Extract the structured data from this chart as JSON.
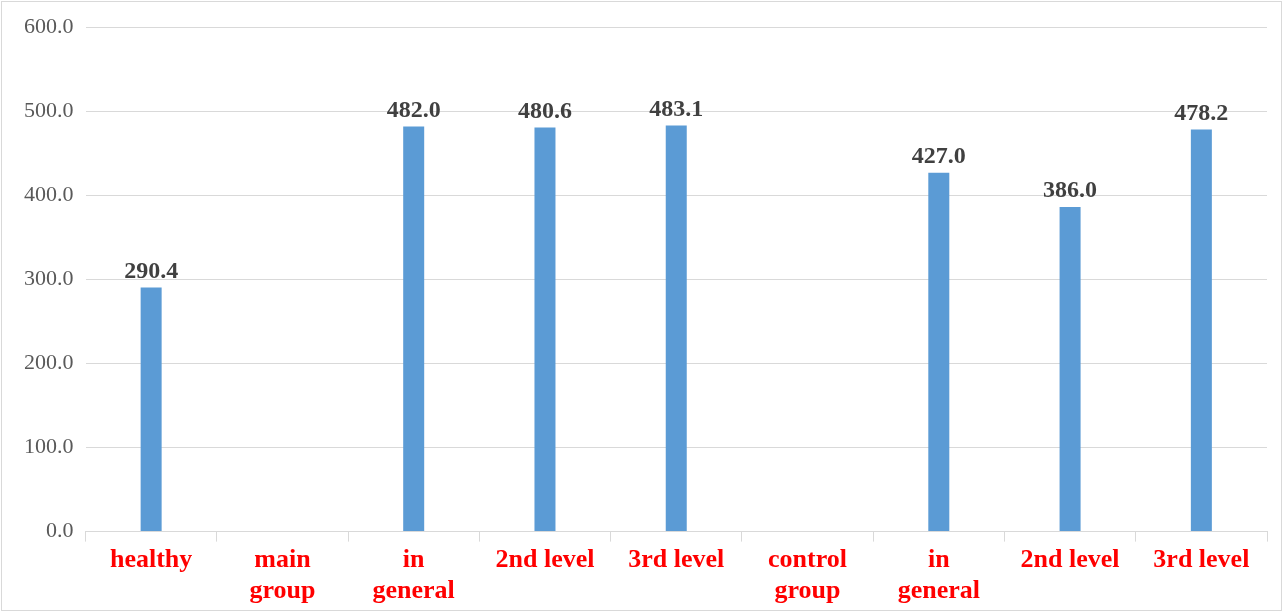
{
  "chart_data": {
    "type": "bar",
    "categories": [
      "healthy",
      "main group",
      "in general",
      "2nd level",
      "3rd level",
      "control group",
      "in general",
      "2nd level",
      "3rd level"
    ],
    "values": [
      290.4,
      null,
      482.0,
      480.6,
      483.1,
      null,
      427.0,
      386.0,
      478.2
    ],
    "value_labels": [
      "290.4",
      null,
      "482.0",
      "480.6",
      "483.1",
      null,
      "427.0",
      "386.0",
      "478.2"
    ],
    "color": "#5b9bd5",
    "ylim": [
      0,
      600
    ],
    "yticks": [
      {
        "value": 0,
        "label": "0.0"
      },
      {
        "value": 100,
        "label": "100.0"
      },
      {
        "value": 200,
        "label": "200.0"
      },
      {
        "value": 300,
        "label": "300.0"
      },
      {
        "value": 400,
        "label": "400.0"
      },
      {
        "value": 500,
        "label": "500.0"
      },
      {
        "value": 600,
        "label": "600.0"
      }
    ],
    "grid": "y",
    "legend": false
  }
}
